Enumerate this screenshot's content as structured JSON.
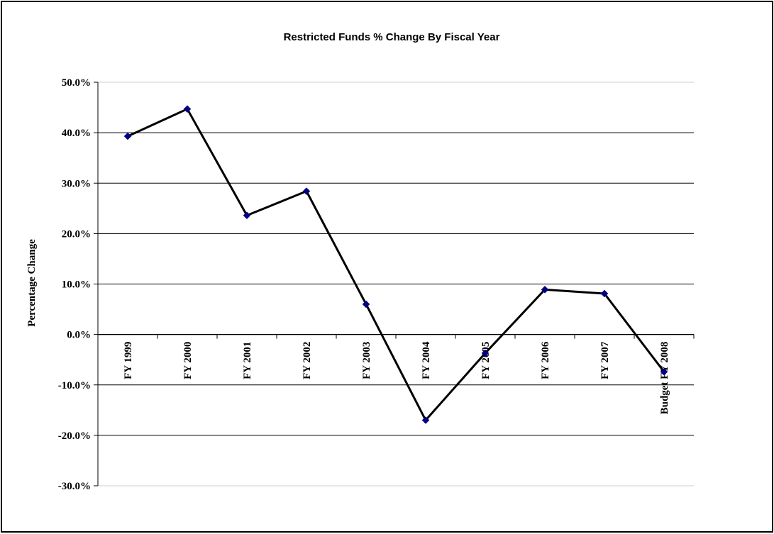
{
  "chart_data": {
    "type": "line",
    "title": "Restricted Funds % Change By Fiscal Year",
    "xlabel": "",
    "ylabel": "Percentage Change",
    "categories": [
      "FY 1999",
      "FY 2000",
      "FY 2001",
      "FY 2002",
      "FY 2003",
      "FY 2004",
      "FY 2005",
      "FY 2006",
      "FY 2007",
      "Budget FY 2008"
    ],
    "series": [
      {
        "values": [
          39.3,
          44.7,
          23.6,
          28.4,
          6.0,
          -17.0,
          -3.7,
          8.9,
          8.1,
          -7.4
        ]
      }
    ],
    "ylim": [
      -30,
      50
    ],
    "yticks": [
      50,
      40,
      30,
      20,
      10,
      0,
      -10,
      -20,
      -30
    ],
    "ytick_labels": [
      "50.0%",
      "40.0%",
      "30.0%",
      "20.0%",
      "10.0%",
      "0.0%",
      "-10.0%",
      "-20.0%",
      "-30.0%"
    ],
    "grid": true,
    "legend": "none",
    "colors": {
      "line": "#000000",
      "marker": "#000080",
      "grid": "#000000",
      "frame": "#000000"
    },
    "marker": "diamond"
  }
}
